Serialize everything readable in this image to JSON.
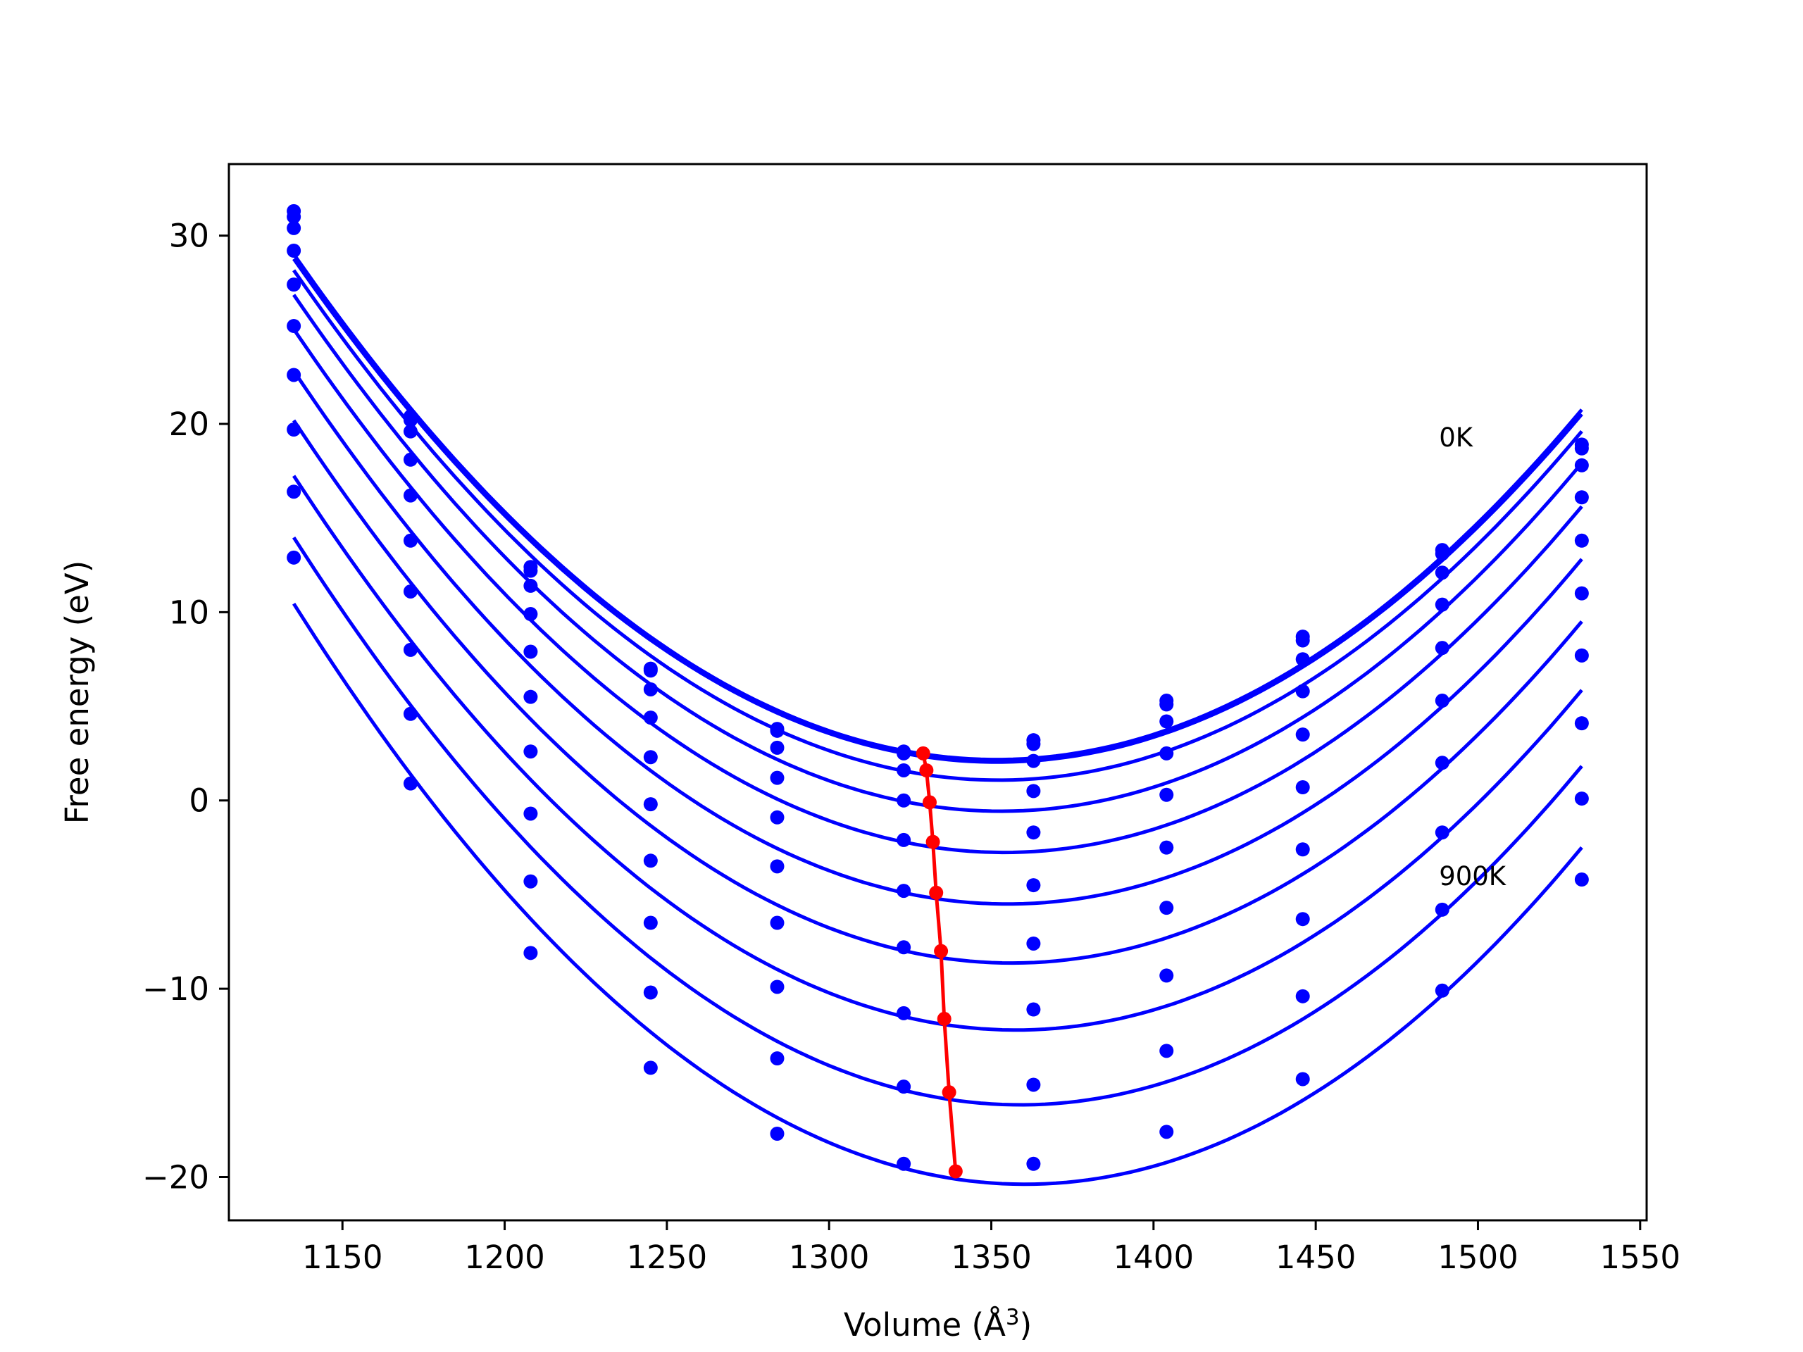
{
  "chart_data": {
    "type": "line",
    "xlabel": "Volume (Å",
    "xlabel_sup": "3",
    "xlabel_close": ")",
    "ylabel": "Free energy (eV)",
    "xlim": [
      1115,
      1552
    ],
    "ylim": [
      -22.3,
      33.8
    ],
    "xticks": [
      1150,
      1200,
      1250,
      1300,
      1350,
      1400,
      1450,
      1500,
      1550
    ],
    "yticks": [
      -20,
      -10,
      0,
      10,
      20,
      30
    ],
    "grid": false,
    "x": [
      1135,
      1171,
      1208,
      1245,
      1284,
      1323,
      1363,
      1404,
      1446,
      1489,
      1532
    ],
    "curve_color": "#0000ff",
    "min_color": "#ff0000",
    "series": [
      {
        "values": [
          31.3,
          20.4,
          12.4,
          7.0,
          3.8,
          2.6,
          3.2,
          5.3,
          8.7,
          13.3,
          18.9
        ]
      },
      {
        "values": [
          31.0,
          20.2,
          12.2,
          6.9,
          3.7,
          2.5,
          3.0,
          5.1,
          8.5,
          13.1,
          18.7
        ]
      },
      {
        "values": [
          30.4,
          19.6,
          11.4,
          5.9,
          2.8,
          1.6,
          2.1,
          4.2,
          7.5,
          12.1,
          17.8
        ]
      },
      {
        "values": [
          29.2,
          18.1,
          9.9,
          4.4,
          1.2,
          0.0,
          0.5,
          2.5,
          5.8,
          10.4,
          16.1
        ]
      },
      {
        "values": [
          27.4,
          16.2,
          7.9,
          2.3,
          -0.9,
          -2.1,
          -1.7,
          0.3,
          3.5,
          8.1,
          13.8
        ]
      },
      {
        "values": [
          25.2,
          13.8,
          5.5,
          -0.2,
          -3.5,
          -4.8,
          -4.5,
          -2.5,
          0.7,
          5.3,
          11.0
        ]
      },
      {
        "values": [
          22.6,
          11.1,
          2.6,
          -3.2,
          -6.5,
          -7.8,
          -7.6,
          -5.7,
          -2.6,
          2.0,
          7.7
        ]
      },
      {
        "values": [
          19.7,
          8.0,
          -0.7,
          -6.5,
          -9.9,
          -11.3,
          -11.1,
          -9.3,
          -6.3,
          -1.7,
          4.1
        ]
      },
      {
        "values": [
          16.4,
          4.6,
          -4.3,
          -10.2,
          -13.7,
          -15.2,
          -15.1,
          -13.3,
          -10.4,
          -5.8,
          0.1
        ]
      },
      {
        "values": [
          12.9,
          0.9,
          -8.1,
          -14.2,
          -17.7,
          -19.3,
          -19.3,
          -17.6,
          -14.8,
          -10.1,
          -4.2
        ]
      }
    ],
    "minima": {
      "x": [
        1329,
        1330,
        1331,
        1332,
        1333,
        1334.5,
        1335.5,
        1337,
        1339
      ],
      "y": [
        2.5,
        1.6,
        -0.1,
        -2.2,
        -4.9,
        -8.0,
        -11.6,
        -15.5,
        -19.7
      ]
    },
    "annotations": [
      {
        "text": "0K",
        "x": 1488,
        "y": 18.8
      },
      {
        "text": "900K",
        "x": 1488,
        "y": -4.5
      }
    ]
  }
}
